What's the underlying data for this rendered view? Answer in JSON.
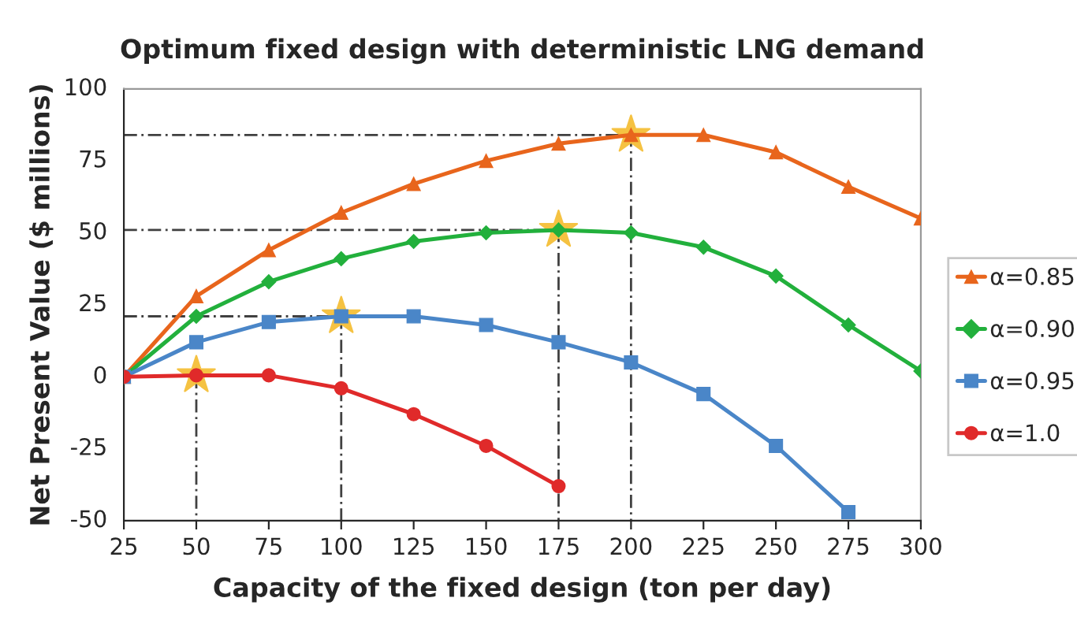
{
  "chart_data": {
    "type": "line",
    "title": "Optimum fixed design with deterministic LNG demand",
    "xlabel": "Capacity of the fixed design (ton per day)",
    "ylabel": "Net Present Value ($ millions)",
    "x": [
      25,
      50,
      75,
      100,
      125,
      150,
      175,
      200,
      225,
      250,
      275,
      300
    ],
    "series": [
      {
        "name": "α=0.85",
        "color": "#e8651c",
        "marker": "triangle",
        "values": [
          0,
          28,
          44,
          57,
          67,
          75,
          81,
          84,
          84,
          78,
          66,
          55
        ]
      },
      {
        "name": "α=0.90",
        "color": "#22b03c",
        "marker": "diamond",
        "values": [
          0,
          21,
          33,
          41,
          47,
          50,
          51,
          50,
          45,
          35,
          18,
          2
        ]
      },
      {
        "name": "α=0.95",
        "color": "#4a86c8",
        "marker": "square",
        "values": [
          0,
          12,
          19,
          21,
          21,
          18,
          12,
          5,
          -6,
          -24,
          -47,
          null
        ]
      },
      {
        "name": "α=1.0",
        "color": "#e02a2a",
        "marker": "circle",
        "values": [
          0,
          0.5,
          0.5,
          -4,
          -13,
          -24,
          -38,
          null,
          null,
          null,
          null,
          null
        ]
      },
      {
        "type": "line",
        "color": "#404040",
        "line_style": "dashed",
        "marker": "none",
        "x": [
          25,
          200,
          200
        ],
        "values": [
          84,
          84,
          -50
        ]
      },
      {
        "type": "line",
        "color": "#404040",
        "line_style": "dashed",
        "marker": "none",
        "x": [
          25,
          175,
          175
        ],
        "values": [
          51,
          51,
          -50
        ]
      },
      {
        "type": "line",
        "color": "#404040",
        "line_style": "dashed",
        "marker": "none",
        "x": [
          25,
          100,
          100
        ],
        "values": [
          21,
          21,
          -50
        ]
      },
      {
        "type": "line",
        "color": "#404040",
        "line_style": "dashed",
        "marker": "none",
        "x": [
          50,
          50
        ],
        "values": [
          0.5,
          -50
        ]
      },
      {
        "type": "scatter",
        "color": "#f5c242",
        "marker": "star",
        "x": [
          50,
          100,
          175,
          200
        ],
        "values": [
          0.5,
          21,
          51,
          84
        ]
      }
    ],
    "xlim": [
      25,
      300
    ],
    "xticks": [
      25,
      50,
      75,
      100,
      125,
      150,
      175,
      200,
      225,
      250,
      275,
      300
    ],
    "ylim": [
      -50,
      100
    ],
    "yticks": [
      -50,
      -25,
      0,
      25,
      50,
      75,
      100
    ],
    "grid": false,
    "legend": "right",
    "line_style": "solid"
  }
}
